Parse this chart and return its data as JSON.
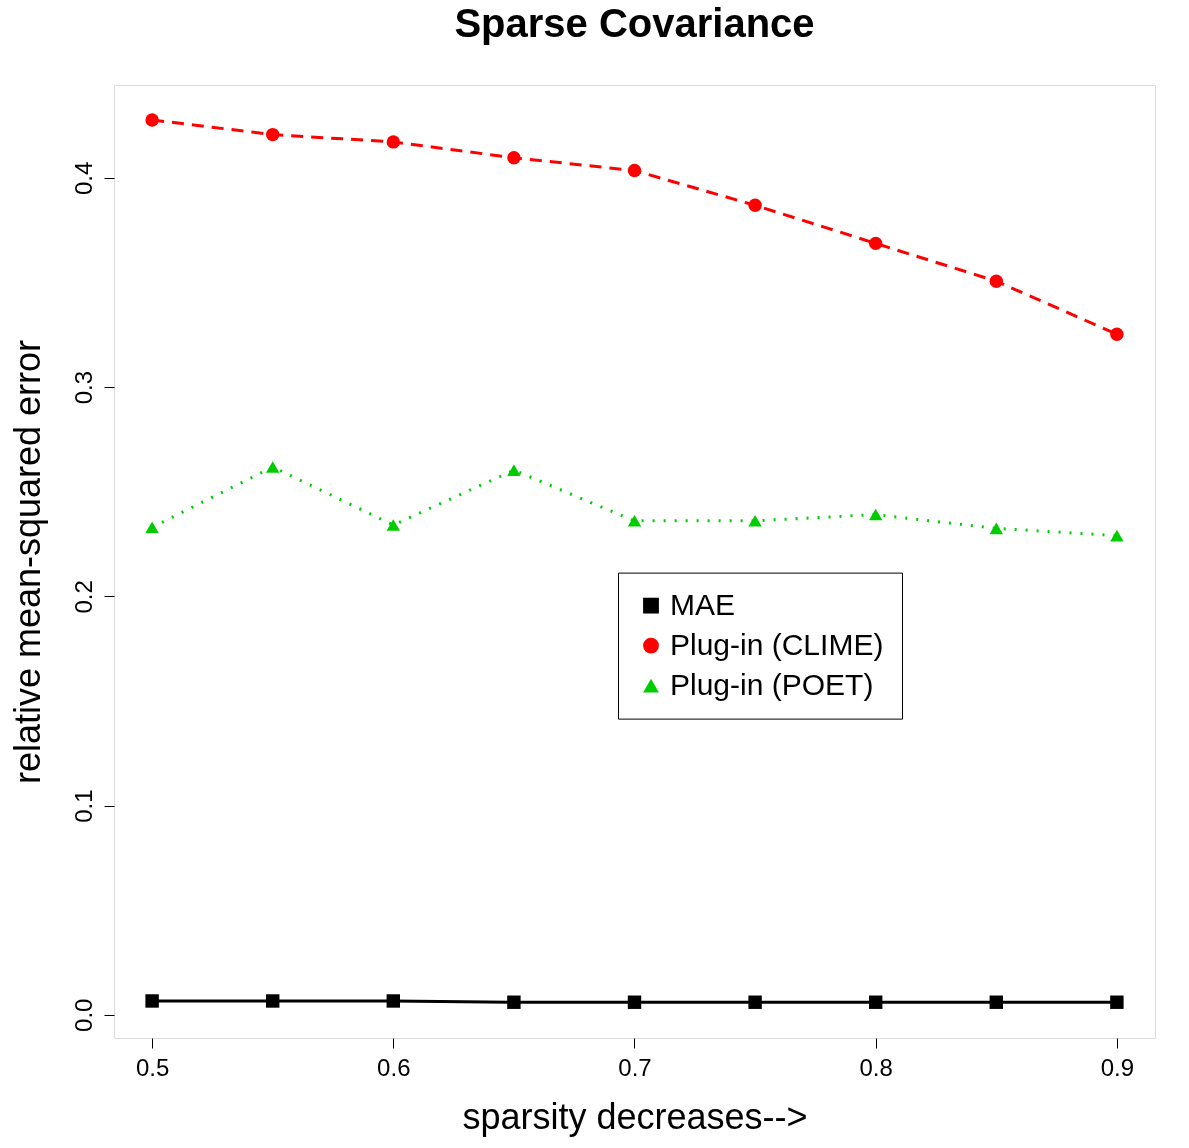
{
  "chart_data": {
    "type": "line",
    "title": "Sparse Covariance",
    "xlabel": "sparsity decreases-->",
    "ylabel": "relative mean-squared error",
    "x": [
      0.5,
      0.55,
      0.6,
      0.65,
      0.7,
      0.75,
      0.8,
      0.85,
      0.9
    ],
    "series": [
      {
        "name": "MAE",
        "color": "#000000",
        "marker": "square",
        "line_style": "solid",
        "values": [
          0.0066,
          0.0066,
          0.0066,
          0.006,
          0.006,
          0.006,
          0.006,
          0.006,
          0.006
        ]
      },
      {
        "name": "Plug-in (CLIME)",
        "color": "#ff0000",
        "marker": "circle",
        "line_style": "dashed",
        "values": [
          0.4277,
          0.4207,
          0.4172,
          0.4096,
          0.4035,
          0.3869,
          0.3687,
          0.3506,
          0.3253
        ]
      },
      {
        "name": "Plug-in (POET)",
        "color": "#00cd00",
        "marker": "triangle",
        "line_style": "dotted",
        "values": [
          0.233,
          0.2618,
          0.2341,
          0.2603,
          0.2361,
          0.2361,
          0.2391,
          0.2325,
          0.229
        ]
      }
    ],
    "xlim": [
      0.4842,
      0.9158
    ],
    "ylim": [
      -0.0111,
      0.4444
    ],
    "xticks": [
      0.5,
      0.6,
      0.7,
      0.8,
      0.9
    ],
    "yticks": [
      {
        "value": 0,
        "label": "0.0"
      },
      0.1,
      0.2,
      0.3,
      0.4
    ],
    "grid": false,
    "legend": "right"
  }
}
